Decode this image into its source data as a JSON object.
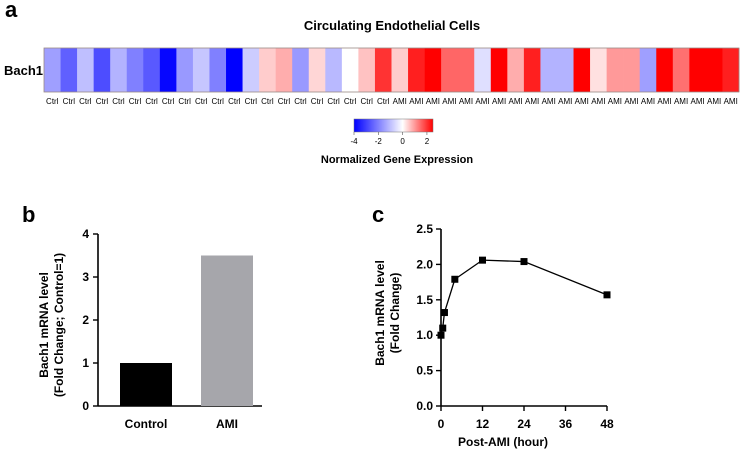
{
  "panel_a": {
    "letter": "a",
    "chart_title": "Circulating Endothelial Cells",
    "row_label": "Bach1",
    "colorbar_ticks": [
      "-4",
      "-2",
      "0",
      "2"
    ],
    "colorbar_title": "Normalized Gene Expression",
    "colors": {
      "low": "#0000ff",
      "mid": "#ffffff",
      "high": "#ff0000"
    }
  },
  "panel_b": {
    "letter": "b",
    "ylabel_line1": "Bach1 mRNA level",
    "ylabel_line2": "(Fold Change; Control=1)",
    "colors": {
      "control": "#000000",
      "ami": "#a6a6ab"
    }
  },
  "panel_c": {
    "letter": "c",
    "ylabel_line1": "Bach1 mRNA level",
    "ylabel_line2": "(Fold Change)",
    "xlabel": "Post-AMI (hour)"
  },
  "chart_data": [
    {
      "type": "heatmap",
      "title": "Circulating Endothelial Cells",
      "row_label": "Bach1",
      "columns": [
        "Ctrl",
        "Ctrl",
        "Ctrl",
        "Ctrl",
        "Ctrl",
        "Ctrl",
        "Ctrl",
        "Ctrl",
        "Ctrl",
        "Ctrl",
        "Ctrl",
        "Ctrl",
        "Ctrl",
        "Ctrl",
        "Ctrl",
        "Ctrl",
        "Ctrl",
        "Ctrl",
        "Ctrl",
        "Ctrl",
        "Ctrl",
        "AMI",
        "AMI",
        "AMI",
        "AMI",
        "AMI",
        "AMI",
        "AMI",
        "AMI",
        "AMI",
        "AMI",
        "AMI",
        "AMI",
        "AMI",
        "AMI",
        "AMI",
        "AMI",
        "AMI",
        "AMI",
        "AMI",
        "AMI",
        "AMI"
      ],
      "values": [
        -1.5,
        -2.5,
        -1.0,
        -2.8,
        -1.2,
        -2.0,
        -2.6,
        -3.9,
        -1.6,
        -0.9,
        -2.0,
        -4.5,
        -0.8,
        0.5,
        0.8,
        -1.6,
        0.4,
        -1.1,
        0.0,
        0.6,
        2.0,
        0.5,
        2.2,
        2.6,
        1.5,
        1.5,
        -0.5,
        2.6,
        0.8,
        2.2,
        -1.2,
        -1.2,
        3.5,
        0.3,
        1.0,
        1.0,
        -1.5,
        2.5,
        1.4,
        2.6,
        3.0,
        2.2
      ],
      "colorbar": {
        "min": -4,
        "max": 2.5,
        "ticks": [
          -4,
          -2,
          0,
          2
        ],
        "title": "Normalized Gene Expression"
      }
    },
    {
      "type": "bar",
      "categories": [
        "Control",
        "AMI"
      ],
      "values": [
        1.0,
        3.5
      ],
      "ylabel": "Bach1 mRNA level (Fold Change; Control=1)",
      "ylim": [
        0,
        4
      ],
      "yticks": [
        0,
        1,
        2,
        3,
        4
      ]
    },
    {
      "type": "line",
      "x": [
        0,
        0.5,
        1,
        4,
        12,
        24,
        48
      ],
      "y": [
        1.0,
        1.1,
        1.32,
        1.79,
        2.06,
        2.04,
        1.57
      ],
      "xlabel": "Post-AMI (hour)",
      "ylabel": "Bach1 mRNA level (Fold Change)",
      "xlim": [
        0,
        48
      ],
      "ylim": [
        0,
        2.5
      ],
      "xticks": [
        0,
        12,
        24,
        36,
        48
      ],
      "yticks": [
        "0.0",
        "0.5",
        "1.0",
        "1.5",
        "2.0",
        "2.5"
      ]
    }
  ]
}
